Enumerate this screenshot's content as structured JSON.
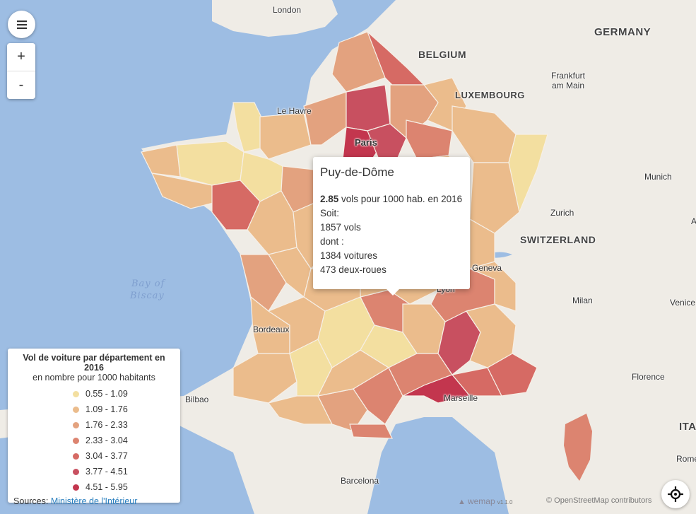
{
  "map": {
    "colors": {
      "c1": "#f3dfa0",
      "c2": "#ebbc8c",
      "c3": "#e3a27f",
      "c4": "#dc8470",
      "c5": "#d66a64",
      "c6": "#c85060",
      "c7": "#c3364e",
      "land": "#efece6",
      "sea": "#9dbde3"
    },
    "countries": [
      "GERMANY",
      "BELGIUM",
      "LUXEMBOURG",
      "SWITZERLAND",
      "ITA"
    ],
    "cities": [
      "London",
      "Le Havre",
      "Paris",
      "Frankfurt am Main",
      "Munich",
      "Zurich",
      "Geneva",
      "Lyon",
      "Milan",
      "Venice",
      "Florence",
      "Bordeaux",
      "Bilbao",
      "Marseille",
      "Barcelona",
      "Rome",
      "A"
    ],
    "sea": [
      "Bay of",
      "Biscay"
    ]
  },
  "controls": {
    "menu_icon": "hamburger-icon",
    "zoom_in": "+",
    "zoom_out": "-",
    "locate_icon": "crosshair-icon"
  },
  "popup": {
    "title": "Puy-de-Dôme",
    "rate": "2.85",
    "rate_text": " vols pour 1000 hab. en 2016",
    "soit": "Soit:",
    "vols": "1857 vols",
    "dont": "dont :",
    "voitures": "1384 voitures",
    "deux_roues": "473 deux-roues"
  },
  "legend": {
    "title": "Vol de voiture par département en 2016",
    "subtitle": "en nombre pour 1000 habitants",
    "classes": [
      {
        "label": "0.55 - 1.09",
        "color": "#f3dfa0"
      },
      {
        "label": "1.09 - 1.76",
        "color": "#ebbc8c"
      },
      {
        "label": "1.76 - 2.33",
        "color": "#e3a27f"
      },
      {
        "label": "2.33 - 3.04",
        "color": "#dc8470"
      },
      {
        "label": "3.04 - 3.77",
        "color": "#d66a64"
      },
      {
        "label": "3.77 - 4.51",
        "color": "#c85060"
      },
      {
        "label": "4.51 - 5.95",
        "color": "#c3364e"
      }
    ],
    "sources_label": "Sources: ",
    "sources_link": "Ministère de l'Intérieur"
  },
  "attribution": {
    "brand": "wemap",
    "version": "v1.1.0",
    "osm": "© OpenStreetMap contributors"
  }
}
